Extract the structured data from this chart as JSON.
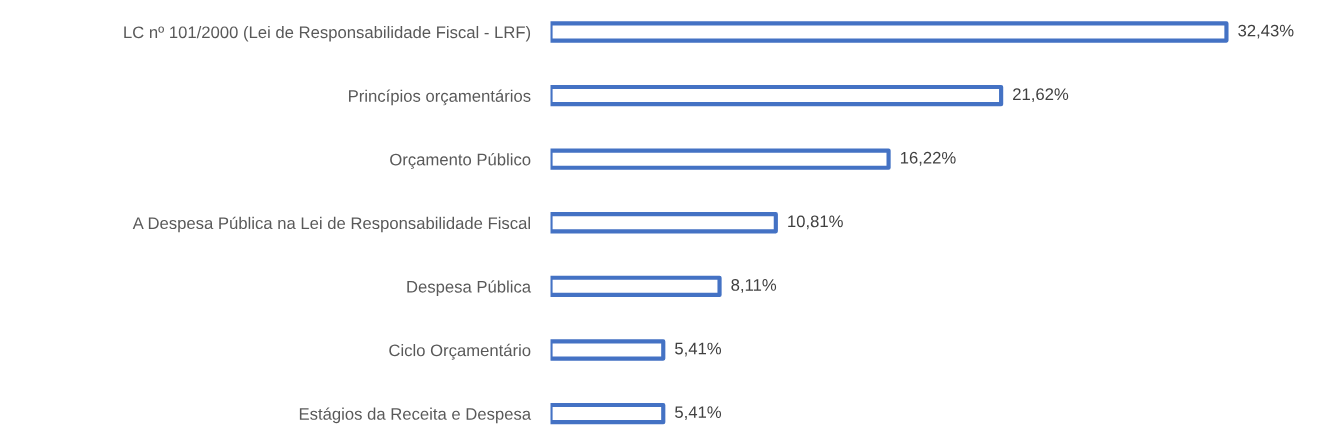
{
  "chart_data": {
    "type": "bar",
    "orientation": "horizontal",
    "categories": [
      "LC nº 101/2000 (Lei de Responsabilidade Fiscal - LRF)",
      "Princípios orçamentários",
      "Orçamento Público",
      "A Despesa Pública na Lei de Responsabilidade Fiscal",
      "Despesa Pública",
      "Ciclo Orçamentário",
      "Estágios da Receita e Despesa"
    ],
    "values": [
      32.43,
      21.62,
      16.22,
      10.81,
      8.11,
      5.41,
      5.41
    ],
    "value_labels": [
      "32,43%",
      "21,62%",
      "16,22%",
      "10,81%",
      "8,11%",
      "5,41%",
      "5,41%"
    ],
    "color": "#4472c4",
    "grid": false,
    "legend": false
  }
}
